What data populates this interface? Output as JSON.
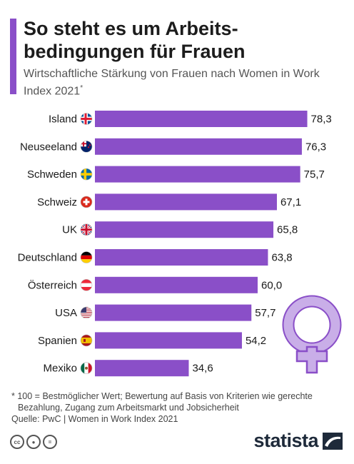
{
  "header": {
    "title": "So steht es um Arbeits-\nbedingungen für Frauen",
    "subtitle": "Wirtschaftliche Stärkung von Frauen nach Women in Work Index 2021",
    "subtitle_mark": "*"
  },
  "colors": {
    "accent": "#8a4fc8",
    "bar": "#8a4fc8",
    "venus_fill": "#c9aee8",
    "venus_stroke": "#8a4fc8"
  },
  "chart_data": {
    "type": "bar",
    "orientation": "horizontal",
    "categories": [
      "Island",
      "Neuseeland",
      "Schweden",
      "Schweiz",
      "UK",
      "Deutschland",
      "Österreich",
      "USA",
      "Spanien",
      "Mexiko"
    ],
    "values": [
      78.3,
      76.3,
      75.7,
      67.1,
      65.8,
      63.8,
      60.0,
      57.7,
      54.2,
      34.6
    ],
    "value_labels": [
      "78,3",
      "76,3",
      "75,7",
      "67,1",
      "65,8",
      "63,8",
      "60,0",
      "57,7",
      "54,2",
      "34,6"
    ],
    "flags": [
      "flag-iceland",
      "flag-new-zealand",
      "flag-sweden",
      "flag-switzerland",
      "flag-uk",
      "flag-germany",
      "flag-austria",
      "flag-usa",
      "flag-spain",
      "flag-mexico"
    ],
    "xlim": [
      0,
      100
    ],
    "grid": false,
    "legend": "none"
  },
  "footer": {
    "footnote_line1": "* 100 = Bestmöglicher Wert; Bewertung auf Basis von Kriterien wie gerechte",
    "footnote_line2": "Bezahlung, Zugang zum Arbeitsmarkt und Jobsicherheit",
    "source": "Quelle: PwC | Women in Work Index 2021",
    "license_icons": [
      "cc-icon",
      "by-icon",
      "nd-icon"
    ],
    "license_symbols": [
      "cc",
      "●",
      "="
    ],
    "brand": "statista"
  }
}
